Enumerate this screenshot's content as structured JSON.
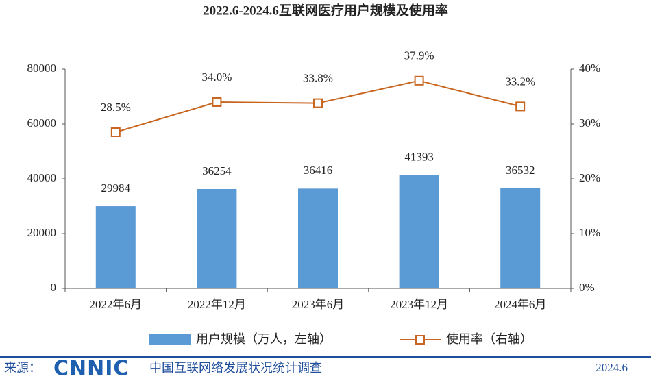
{
  "chart_data": {
    "type": "bar",
    "title": "2022.6-2024.6互联网医疗用户规模及使用率",
    "categories": [
      "2022年6月",
      "2022年12月",
      "2023年6月",
      "2023年12月",
      "2024年6月"
    ],
    "series": [
      {
        "name": "用户规模（万人，左轴）",
        "type": "bar",
        "color": "#5b9bd5",
        "values": [
          29984,
          36254,
          36416,
          41393,
          36532
        ]
      },
      {
        "name": "使用率（右轴）",
        "type": "line",
        "axis": "y2",
        "color": "#c8661f",
        "values": [
          28.5,
          34.0,
          33.8,
          37.9,
          33.2
        ],
        "value_labels": [
          "28.5%",
          "34.0%",
          "33.8%",
          "37.9%",
          "33.2%"
        ]
      }
    ],
    "ylim": [
      0,
      80000
    ],
    "yticks": [
      0,
      20000,
      40000,
      60000,
      80000
    ],
    "y2lim": [
      0,
      40
    ],
    "y2ticks": [
      {
        "value": 0,
        "label": "0%"
      },
      {
        "value": 10,
        "label": "10%"
      },
      {
        "value": 20,
        "label": "20%"
      },
      {
        "value": 30,
        "label": "30%"
      },
      {
        "value": 40,
        "label": "40%"
      }
    ],
    "legend": "bottom"
  },
  "footer": {
    "source_label": "来源：",
    "logo": "CNNIC",
    "text": "中国互联网络发展状况统计调查",
    "date": "2024.6"
  }
}
